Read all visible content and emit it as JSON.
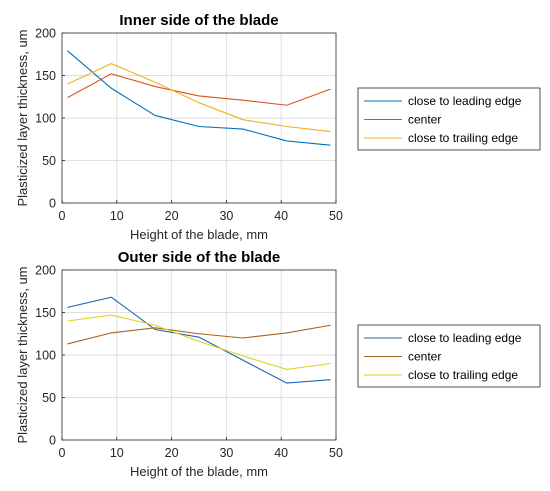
{
  "chart_data": [
    {
      "type": "line",
      "title": "Inner side of the blade",
      "xlabel": "Height of the blade, mm",
      "ylabel": "Plasticized layer thickness, um",
      "xlim": [
        0,
        50
      ],
      "ylim": [
        0,
        200
      ],
      "xticks": [
        "0",
        "10",
        "20",
        "30",
        "40",
        "50"
      ],
      "yticks": [
        "0",
        "50",
        "100",
        "150",
        "200"
      ],
      "x": [
        1,
        9,
        17,
        25,
        33,
        41,
        49
      ],
      "legend": "outside-right",
      "grid": true,
      "series": [
        {
          "name": "close to leading edge",
          "color": "#0072BD",
          "values": [
            179,
            135,
            103,
            90,
            87,
            73,
            68
          ]
        },
        {
          "name": "center",
          "color": "#D95319",
          "values": [
            124,
            152,
            137,
            126,
            121,
            115,
            134
          ]
        },
        {
          "name": "close to trailing edge",
          "color": "#EDB120",
          "values": [
            140,
            164,
            142,
            118,
            98,
            90,
            84
          ]
        }
      ]
    },
    {
      "type": "line",
      "title": "Outer side of the blade",
      "xlabel": "Height of the blade, mm",
      "ylabel": "Plasticized layer thickness, um",
      "xlim": [
        0,
        50
      ],
      "ylim": [
        0,
        200
      ],
      "xticks": [
        "0",
        "10",
        "20",
        "30",
        "40",
        "50"
      ],
      "yticks": [
        "0",
        "50",
        "100",
        "150",
        "200"
      ],
      "x": [
        1,
        9,
        17,
        25,
        33,
        41,
        49
      ],
      "legend": "outside-right",
      "grid": true,
      "series": [
        {
          "name": "close to leading edge",
          "color": "#1F63B4",
          "values": [
            156,
            168,
            130,
            121,
            94,
            67,
            71
          ]
        },
        {
          "name": "center",
          "color": "#A8621F",
          "values": [
            113,
            126,
            132,
            125,
            120,
            126,
            135
          ]
        },
        {
          "name": "close to trailing edge",
          "color": "#E0D21E",
          "values": [
            140,
            147,
            135,
            116,
            99,
            83,
            90
          ]
        }
      ]
    }
  ]
}
